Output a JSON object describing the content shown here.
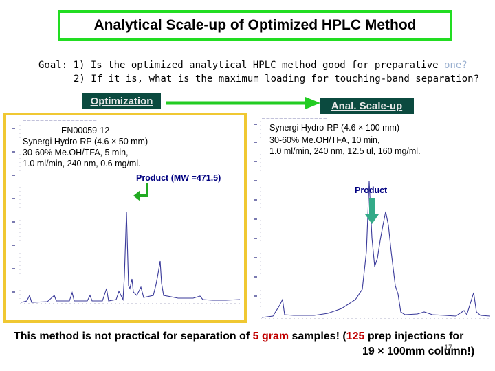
{
  "title": "Analytical Scale-up of Optimized HPLC Method",
  "goal": {
    "line1_prefix": "Goal: 1) Is the optimized analytical HPLC method good for preparative ",
    "line1_link": "one?",
    "line2": "2) If it is, what is the maximum loading for touching-band separation?"
  },
  "labels": {
    "optimization": "Optimization",
    "scale_up": "Anal. Scale-up"
  },
  "left_panel": {
    "id": "EN00059-12",
    "conditions": [
      "Synergi Hydro-RP (4.6 × 50 mm)",
      "30-60% Me.OH/TFA, 5 min,",
      "1.0 ml/min, 240 nm, 0.6 mg/ml."
    ],
    "product_label": "Product (MW =471.5)"
  },
  "right_panel": {
    "conditions": [
      "Synergi Hydro-RP (4.6 × 100 mm)",
      "30-60% Me.OH/TFA, 10 min,",
      "1.0 ml/min, 240 nm, 12.5 ul, 160 mg/ml."
    ],
    "product_label": "Product"
  },
  "bottom": {
    "part1": "This method is not practical for separation of ",
    "amount": "5 gram",
    "part2": " samples! (",
    "count": "125",
    "part3": " prep injections for",
    "line2": "19 × 100mm column!)"
  },
  "page_number": "17",
  "colors": {
    "title_border": "#22dd22",
    "panel_border": "#f0c832",
    "label_bg": "#0b4a3f",
    "arrow": "#22cc22",
    "highlight_red": "#c00000",
    "product_blue": "#000080"
  }
}
